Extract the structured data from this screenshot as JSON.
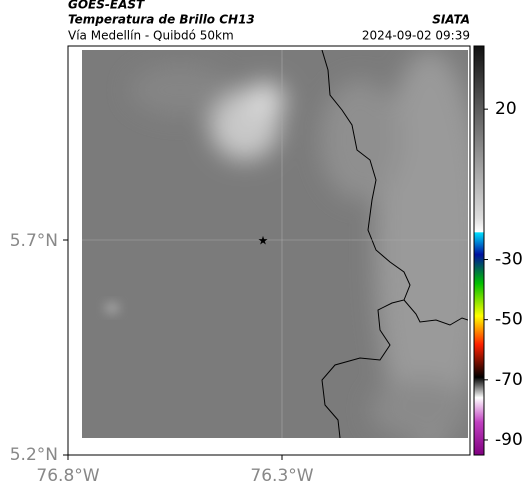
{
  "header": {
    "source": "GOES-EAST",
    "product": "Temperatura de Brillo CH13",
    "region": "Vía Medellín - Quibdó 50km",
    "agency": "SIATA",
    "timestamp": "2024-09-02 09:39"
  },
  "map": {
    "yticks": [
      "5.7°N",
      "5.2°N"
    ],
    "xticks": [
      "76.8°W",
      "76.3°W"
    ]
  },
  "colorbar": {
    "lim": [
      -95,
      41
    ],
    "ticks": [
      20,
      -30,
      -50,
      -70,
      -90
    ]
  }
}
